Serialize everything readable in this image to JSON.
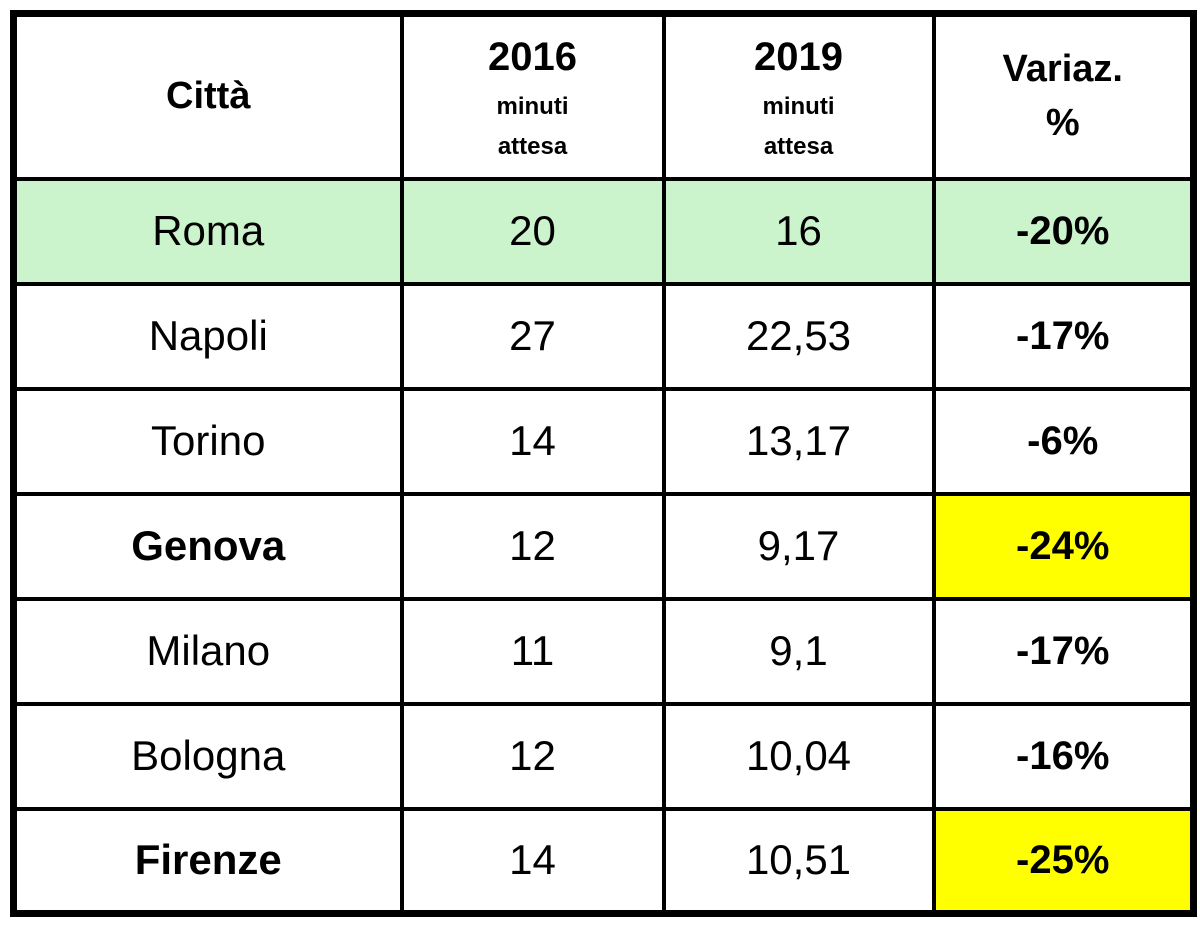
{
  "header": {
    "col_city": "Città",
    "col_2016_year": "2016",
    "col_2016_sub1": "minuti",
    "col_2016_sub2": "attesa",
    "col_2019_year": "2019",
    "col_2019_sub1": "minuti",
    "col_2019_sub2": "attesa",
    "col_var_line1": "Variaz.",
    "col_var_line2": "%"
  },
  "rows": [
    {
      "city": "Roma",
      "v2016": "20",
      "v2019": "16",
      "variation": "-20%"
    },
    {
      "city": "Napoli",
      "v2016": "27",
      "v2019": "22,53",
      "variation": "-17%"
    },
    {
      "city": "Torino",
      "v2016": "14",
      "v2019": "13,17",
      "variation": "-6%"
    },
    {
      "city": "Genova",
      "v2016": "12",
      "v2019": "9,17",
      "variation": "-24%"
    },
    {
      "city": "Milano",
      "v2016": "11",
      "v2019": "9,1",
      "variation": "-17%"
    },
    {
      "city": "Bologna",
      "v2016": "12",
      "v2019": "10,04",
      "variation": "-16%"
    },
    {
      "city": "Firenze",
      "v2016": "14",
      "v2019": "10,51",
      "variation": "-25%"
    }
  ],
  "colors": {
    "highlight_green": "#cbf3cc",
    "highlight_yellow": "#ffff00",
    "border_black": "#000000",
    "text_black": "#000000"
  },
  "chart_data": {
    "type": "table",
    "title": "",
    "columns": [
      "Città",
      "2016 minuti attesa",
      "2019 minuti attesa",
      "Variaz. %"
    ],
    "rows": [
      [
        "Roma",
        20,
        16,
        "-20%"
      ],
      [
        "Napoli",
        27,
        22.53,
        "-17%"
      ],
      [
        "Torino",
        14,
        13.17,
        "-6%"
      ],
      [
        "Genova",
        12,
        9.17,
        "-24%"
      ],
      [
        "Milano",
        11,
        9.1,
        "-17%"
      ],
      [
        "Bologna",
        12,
        10.04,
        "-16%"
      ],
      [
        "Firenze",
        14,
        10.51,
        "-25%"
      ]
    ],
    "highlights": {
      "green_row": "Roma",
      "yellow_cells": [
        "Genova Variaz. %",
        "Firenze Variaz. %"
      ]
    }
  }
}
